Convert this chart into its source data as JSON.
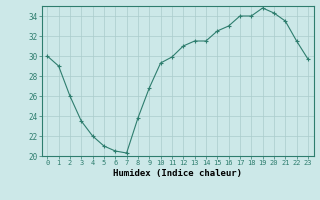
{
  "x": [
    0,
    1,
    2,
    3,
    4,
    5,
    6,
    7,
    8,
    9,
    10,
    11,
    12,
    13,
    14,
    15,
    16,
    17,
    18,
    19,
    20,
    21,
    22,
    23
  ],
  "y": [
    30.0,
    29.0,
    26.0,
    23.5,
    22.0,
    21.0,
    20.5,
    20.3,
    23.8,
    26.8,
    29.3,
    29.9,
    31.0,
    31.5,
    31.5,
    32.5,
    33.0,
    34.0,
    34.0,
    34.8,
    34.3,
    33.5,
    31.5,
    29.7
  ],
  "line_color": "#2e7d6e",
  "marker": "+",
  "marker_size": 3,
  "marker_edge_width": 0.8,
  "line_width": 0.8,
  "bg_color": "#cce8e8",
  "grid_color": "#aacccc",
  "xlabel": "Humidex (Indice chaleur)",
  "ylim": [
    20,
    35
  ],
  "xlim": [
    -0.5,
    23.5
  ],
  "yticks": [
    20,
    22,
    24,
    26,
    28,
    30,
    32,
    34
  ],
  "xticks": [
    0,
    1,
    2,
    3,
    4,
    5,
    6,
    7,
    8,
    9,
    10,
    11,
    12,
    13,
    14,
    15,
    16,
    17,
    18,
    19,
    20,
    21,
    22,
    23
  ],
  "tick_fontsize": 5,
  "xlabel_fontsize": 6.5,
  "spine_color": "#2e7d6e"
}
